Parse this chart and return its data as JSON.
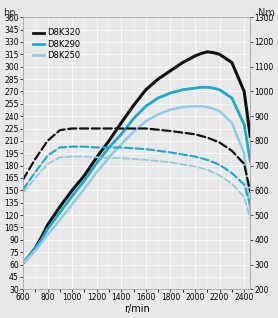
{
  "title_left": "hp",
  "title_right": "Nm",
  "xlabel": "r/min",
  "ylim_left": [
    30,
    360
  ],
  "ylim_right": [
    200,
    1300
  ],
  "xlim": [
    600,
    2450
  ],
  "yticks_left": [
    30,
    45,
    60,
    75,
    90,
    105,
    120,
    135,
    150,
    165,
    180,
    195,
    210,
    225,
    240,
    255,
    270,
    285,
    300,
    315,
    330,
    345,
    360
  ],
  "yticks_right": [
    200,
    300,
    400,
    500,
    600,
    700,
    800,
    900,
    1000,
    1100,
    1200,
    1300
  ],
  "xticks": [
    600,
    800,
    1000,
    1200,
    1400,
    1600,
    1800,
    2000,
    2200,
    2400
  ],
  "series": {
    "D8K320_power": {
      "x": [
        600,
        650,
        700,
        750,
        800,
        900,
        1000,
        1100,
        1200,
        1300,
        1400,
        1500,
        1600,
        1700,
        1800,
        1900,
        2000,
        2050,
        2100,
        2150,
        2200,
        2300,
        2400,
        2450
      ],
      "y": [
        62,
        70,
        80,
        93,
        108,
        130,
        150,
        168,
        190,
        210,
        232,
        253,
        272,
        285,
        295,
        305,
        313,
        316,
        318,
        317,
        315,
        305,
        270,
        215
      ],
      "color": "#111111",
      "lw": 2.2,
      "ls": "solid",
      "label": "D8K320"
    },
    "D8K290_power": {
      "x": [
        600,
        650,
        700,
        750,
        800,
        900,
        1000,
        1100,
        1200,
        1300,
        1400,
        1500,
        1600,
        1700,
        1800,
        1900,
        2000,
        2050,
        2100,
        2150,
        2200,
        2300,
        2400,
        2450
      ],
      "y": [
        62,
        70,
        80,
        90,
        103,
        123,
        143,
        162,
        183,
        202,
        218,
        237,
        252,
        262,
        268,
        272,
        274,
        275,
        275,
        274,
        272,
        262,
        230,
        185
      ],
      "color": "#1da8d0",
      "lw": 2.0,
      "ls": "solid",
      "label": "D8K290"
    },
    "D8K250_power": {
      "x": [
        600,
        650,
        700,
        750,
        800,
        900,
        1000,
        1100,
        1200,
        1300,
        1400,
        1500,
        1600,
        1700,
        1800,
        1900,
        2000,
        2050,
        2100,
        2150,
        2200,
        2300,
        2400,
        2450
      ],
      "y": [
        62,
        69,
        77,
        86,
        96,
        114,
        133,
        152,
        172,
        190,
        206,
        221,
        234,
        242,
        248,
        251,
        252,
        252,
        251,
        249,
        246,
        232,
        195,
        125
      ],
      "color": "#90cce0",
      "lw": 1.8,
      "ls": "solid",
      "label": "D8K250"
    },
    "D8K320_torque": {
      "x": [
        600,
        700,
        800,
        900,
        1000,
        1100,
        1200,
        1400,
        1600,
        1800,
        2000,
        2100,
        2200,
        2300,
        2400,
        2450
      ],
      "y": [
        163,
        188,
        210,
        223,
        225,
        225,
        225,
        225,
        225,
        222,
        218,
        214,
        208,
        198,
        182,
        148
      ],
      "color": "#111111",
      "lw": 1.6,
      "ls": "dashed",
      "label": null
    },
    "D8K290_torque": {
      "x": [
        600,
        700,
        800,
        900,
        1000,
        1100,
        1200,
        1400,
        1600,
        1800,
        2000,
        2100,
        2200,
        2300,
        2400,
        2450
      ],
      "y": [
        151,
        172,
        192,
        202,
        203,
        203,
        202,
        202,
        200,
        196,
        191,
        187,
        181,
        171,
        157,
        132
      ],
      "color": "#1da8d0",
      "lw": 1.5,
      "ls": "dashed",
      "label": null
    },
    "D8K250_torque": {
      "x": [
        600,
        700,
        800,
        900,
        1000,
        1100,
        1200,
        1400,
        1600,
        1800,
        2000,
        2100,
        2200,
        2300,
        2400,
        2450
      ],
      "y": [
        147,
        165,
        182,
        190,
        191,
        191,
        190,
        189,
        187,
        184,
        179,
        175,
        168,
        158,
        142,
        115
      ],
      "color": "#90cce0",
      "lw": 1.3,
      "ls": "dashed",
      "label": null
    }
  },
  "legend_labels": [
    "D8K320",
    "D8K290",
    "D8K250"
  ],
  "legend_colors": [
    "#111111",
    "#1da8d0",
    "#90cce0"
  ],
  "bg_color": "#e8e8e8",
  "grid_color": "#ffffff",
  "font_size_label": 7,
  "font_size_tick": 5.5,
  "font_size_legend": 6.0
}
